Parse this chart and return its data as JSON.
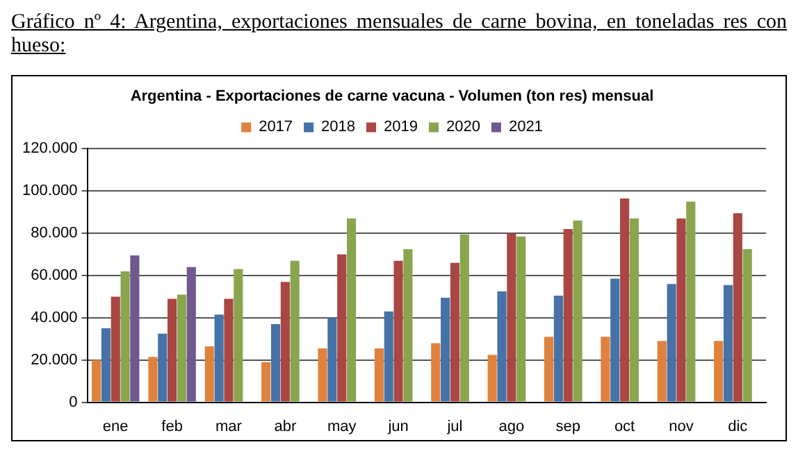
{
  "chart_data": {
    "type": "bar",
    "title": "Gráfico nº 4: Argentina, exportaciones mensuales de carne bovina, en toneladas res con hueso:",
    "subtitle": "Argentina - Exportaciones de carne vacuna - Volumen (ton res) mensual",
    "categories": [
      "ene",
      "feb",
      "mar",
      "abr",
      "may",
      "jun",
      "jul",
      "ago",
      "sep",
      "oct",
      "nov",
      "dic"
    ],
    "series": [
      {
        "name": "2017",
        "color": "#e0823d",
        "values": [
          20000,
          21500,
          26500,
          19000,
          25500,
          25500,
          28000,
          22500,
          31000,
          31000,
          29000,
          29000
        ]
      },
      {
        "name": "2018",
        "color": "#4572a7",
        "values": [
          35000,
          32500,
          41500,
          37000,
          40000,
          43000,
          49500,
          52500,
          50500,
          58500,
          56000,
          55500
        ]
      },
      {
        "name": "2019",
        "color": "#aa4643",
        "values": [
          50000,
          49000,
          49000,
          57000,
          70000,
          67000,
          66000,
          80000,
          82000,
          96500,
          87000,
          89500
        ]
      },
      {
        "name": "2020",
        "color": "#89a54e",
        "values": [
          62000,
          51000,
          63000,
          67000,
          87000,
          72500,
          79500,
          78500,
          86000,
          87000,
          95000,
          72500
        ]
      },
      {
        "name": "2021",
        "color": "#71588f",
        "values": [
          69500,
          64000,
          null,
          null,
          null,
          null,
          null,
          null,
          null,
          null,
          null,
          null
        ]
      }
    ],
    "ylim": [
      0,
      120000
    ],
    "yticks": [
      {
        "value": 0,
        "label": "0"
      },
      {
        "value": 20000,
        "label": "20.000"
      },
      {
        "value": 40000,
        "label": "40.000"
      },
      {
        "value": 60000,
        "label": "60.000"
      },
      {
        "value": 80000,
        "label": "80.000"
      },
      {
        "value": 100000,
        "label": "100.000"
      },
      {
        "value": 120000,
        "label": "120.000"
      }
    ],
    "grid": "y",
    "legend": "top"
  }
}
